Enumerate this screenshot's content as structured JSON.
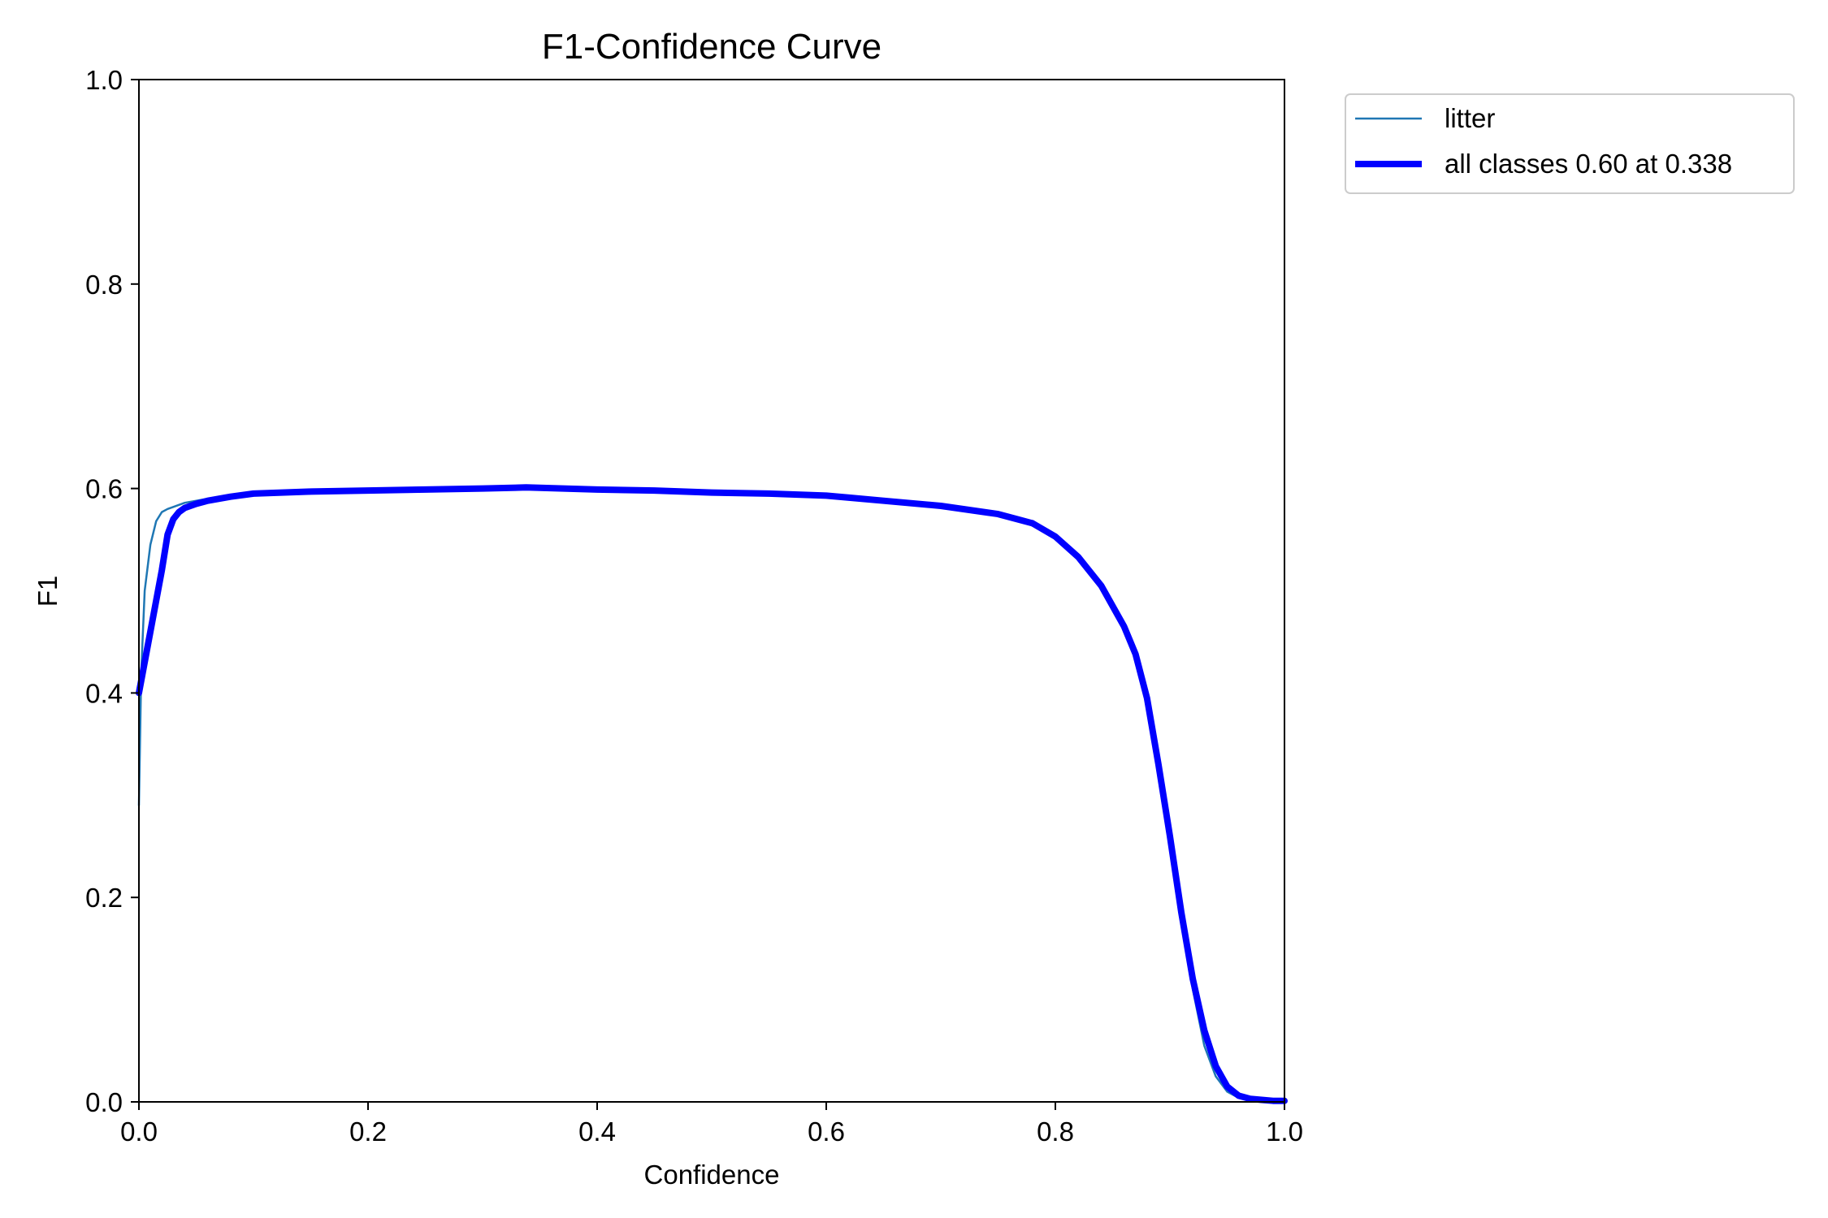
{
  "chart_data": {
    "type": "line",
    "title": "F1-Confidence Curve",
    "xlabel": "Confidence",
    "ylabel": "F1",
    "xlim": [
      0,
      1
    ],
    "ylim": [
      0,
      1
    ],
    "grid": false,
    "legend_position": "outside-top-right",
    "x_ticks": [
      "0.0",
      "0.2",
      "0.4",
      "0.6",
      "0.8",
      "1.0"
    ],
    "y_ticks": [
      "0.0",
      "0.2",
      "0.4",
      "0.6",
      "0.8",
      "1.0"
    ],
    "series": [
      {
        "name": "litter",
        "color": "#1f77b4",
        "x": [
          0.0,
          0.002,
          0.005,
          0.01,
          0.015,
          0.02,
          0.025,
          0.03,
          0.04,
          0.05,
          0.06,
          0.08,
          0.1,
          0.15,
          0.2,
          0.25,
          0.3,
          0.338,
          0.4,
          0.45,
          0.5,
          0.55,
          0.6,
          0.62,
          0.65,
          0.7,
          0.75,
          0.78,
          0.8,
          0.82,
          0.84,
          0.86,
          0.87,
          0.88,
          0.89,
          0.9,
          0.91,
          0.92,
          0.93,
          0.94,
          0.95,
          0.96,
          0.97,
          0.98,
          0.99,
          1.0
        ],
        "y": [
          0.29,
          0.42,
          0.5,
          0.545,
          0.568,
          0.577,
          0.58,
          0.582,
          0.586,
          0.588,
          0.59,
          0.593,
          0.596,
          0.598,
          0.599,
          0.6,
          0.6,
          0.601,
          0.599,
          0.598,
          0.596,
          0.595,
          0.593,
          0.591,
          0.588,
          0.583,
          0.575,
          0.566,
          0.553,
          0.533,
          0.505,
          0.465,
          0.438,
          0.4,
          0.34,
          0.27,
          0.19,
          0.11,
          0.055,
          0.025,
          0.01,
          0.004,
          0.002,
          0.001,
          0.0,
          0.0
        ]
      },
      {
        "name": "all classes 0.60 at 0.338",
        "color": "#0000ff",
        "x": [
          0.0,
          0.01,
          0.02,
          0.025,
          0.03,
          0.035,
          0.04,
          0.05,
          0.06,
          0.08,
          0.1,
          0.15,
          0.2,
          0.25,
          0.3,
          0.338,
          0.4,
          0.45,
          0.5,
          0.55,
          0.6,
          0.62,
          0.65,
          0.7,
          0.75,
          0.78,
          0.8,
          0.82,
          0.84,
          0.86,
          0.87,
          0.88,
          0.89,
          0.9,
          0.91,
          0.92,
          0.93,
          0.94,
          0.95,
          0.96,
          0.97,
          0.98,
          0.99,
          1.0
        ],
        "y": [
          0.4,
          0.46,
          0.52,
          0.555,
          0.57,
          0.577,
          0.581,
          0.585,
          0.588,
          0.592,
          0.595,
          0.597,
          0.598,
          0.599,
          0.6,
          0.601,
          0.599,
          0.598,
          0.596,
          0.595,
          0.593,
          0.591,
          0.588,
          0.583,
          0.575,
          0.566,
          0.553,
          0.533,
          0.505,
          0.465,
          0.438,
          0.395,
          0.33,
          0.26,
          0.185,
          0.12,
          0.07,
          0.035,
          0.015,
          0.006,
          0.003,
          0.002,
          0.001,
          0.001
        ]
      }
    ]
  }
}
